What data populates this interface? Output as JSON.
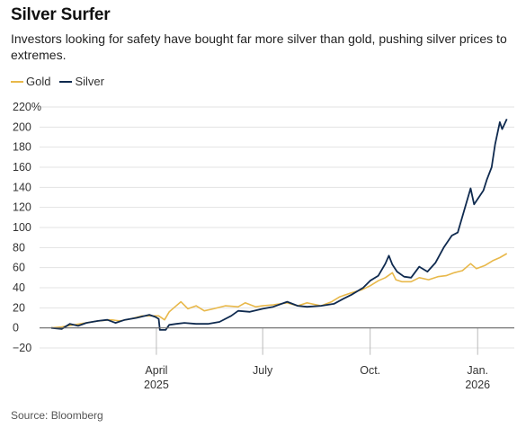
{
  "title": "Silver Surfer",
  "subtitle": "Investors looking for safety have bought far more silver than gold, pushing silver prices to extremes.",
  "source": "Source: Bloomberg",
  "colors": {
    "gold": "#e8b84a",
    "silver": "#0f2a4f",
    "grid": "#e3e3e3",
    "baseline": "#666666"
  },
  "chart_data": {
    "type": "line",
    "title": "Silver Surfer",
    "ylabel": "",
    "xlabel": "",
    "ylim": [
      -20,
      220
    ],
    "y_ticks": [
      -20,
      0,
      20,
      40,
      60,
      80,
      100,
      120,
      140,
      160,
      180,
      200,
      220
    ],
    "y_tick_labels": [
      "−20",
      "0",
      "20",
      "40",
      "60",
      "80",
      "100",
      "120",
      "140",
      "160",
      "180",
      "200",
      "220%"
    ],
    "x_ticks": [
      {
        "date": "2025-04-01",
        "label": "April",
        "sublabel": "2025"
      },
      {
        "date": "2025-07-01",
        "label": "July",
        "sublabel": ""
      },
      {
        "date": "2025-10-01",
        "label": "Oct.",
        "sublabel": ""
      },
      {
        "date": "2026-01-01",
        "label": "Jan.",
        "sublabel": "2026"
      }
    ],
    "xlim": [
      "2025-01-01",
      "2026-01-27"
    ],
    "grid": true,
    "legend": "top-left",
    "series": [
      {
        "name": "Gold",
        "color": "#e8b84a",
        "points": [
          [
            "2025-01-01",
            0
          ],
          [
            "2025-01-10",
            1
          ],
          [
            "2025-01-20",
            3
          ],
          [
            "2025-01-31",
            5
          ],
          [
            "2025-02-10",
            7
          ],
          [
            "2025-02-21",
            8
          ],
          [
            "2025-03-01",
            7
          ],
          [
            "2025-03-10",
            9
          ],
          [
            "2025-03-20",
            12
          ],
          [
            "2025-03-31",
            12
          ],
          [
            "2025-04-03",
            12
          ],
          [
            "2025-04-08",
            8
          ],
          [
            "2025-04-12",
            16
          ],
          [
            "2025-04-17",
            21
          ],
          [
            "2025-04-22",
            26
          ],
          [
            "2025-04-28",
            19
          ],
          [
            "2025-05-05",
            22
          ],
          [
            "2025-05-12",
            17
          ],
          [
            "2025-05-20",
            19
          ],
          [
            "2025-05-30",
            22
          ],
          [
            "2025-06-10",
            21
          ],
          [
            "2025-06-16",
            25
          ],
          [
            "2025-06-25",
            21
          ],
          [
            "2025-07-01",
            22
          ],
          [
            "2025-07-10",
            23
          ],
          [
            "2025-07-22",
            25
          ],
          [
            "2025-07-31",
            22
          ],
          [
            "2025-08-08",
            25
          ],
          [
            "2025-08-20",
            22
          ],
          [
            "2025-08-29",
            26
          ],
          [
            "2025-09-05",
            31
          ],
          [
            "2025-09-15",
            35
          ],
          [
            "2025-09-24",
            38
          ],
          [
            "2025-10-01",
            42
          ],
          [
            "2025-10-08",
            47
          ],
          [
            "2025-10-14",
            50
          ],
          [
            "2025-10-20",
            55
          ],
          [
            "2025-10-23",
            48
          ],
          [
            "2025-10-28",
            46
          ],
          [
            "2025-11-05",
            46
          ],
          [
            "2025-11-12",
            50
          ],
          [
            "2025-11-20",
            48
          ],
          [
            "2025-11-28",
            51
          ],
          [
            "2025-12-05",
            52
          ],
          [
            "2025-12-12",
            55
          ],
          [
            "2025-12-19",
            57
          ],
          [
            "2025-12-26",
            64
          ],
          [
            "2025-12-31",
            59
          ],
          [
            "2026-01-07",
            62
          ],
          [
            "2026-01-14",
            67
          ],
          [
            "2026-01-20",
            70
          ],
          [
            "2026-01-26",
            74
          ]
        ]
      },
      {
        "name": "Silver",
        "color": "#0f2a4f",
        "points": [
          [
            "2025-01-01",
            0
          ],
          [
            "2025-01-10",
            -1
          ],
          [
            "2025-01-17",
            4
          ],
          [
            "2025-01-24",
            2
          ],
          [
            "2025-01-31",
            5
          ],
          [
            "2025-02-10",
            7
          ],
          [
            "2025-02-18",
            8
          ],
          [
            "2025-02-25",
            5
          ],
          [
            "2025-03-05",
            8
          ],
          [
            "2025-03-15",
            10
          ],
          [
            "2025-03-26",
            13
          ],
          [
            "2025-03-31",
            11
          ],
          [
            "2025-04-03",
            9
          ],
          [
            "2025-04-04",
            -2
          ],
          [
            "2025-04-09",
            -2
          ],
          [
            "2025-04-12",
            3
          ],
          [
            "2025-04-18",
            4
          ],
          [
            "2025-04-25",
            5
          ],
          [
            "2025-05-05",
            4
          ],
          [
            "2025-05-15",
            4
          ],
          [
            "2025-05-25",
            6
          ],
          [
            "2025-06-04",
            12
          ],
          [
            "2025-06-10",
            17
          ],
          [
            "2025-06-20",
            16
          ],
          [
            "2025-07-01",
            19
          ],
          [
            "2025-07-10",
            21
          ],
          [
            "2025-07-22",
            26
          ],
          [
            "2025-07-31",
            22
          ],
          [
            "2025-08-08",
            21
          ],
          [
            "2025-08-20",
            22
          ],
          [
            "2025-08-31",
            24
          ],
          [
            "2025-09-08",
            29
          ],
          [
            "2025-09-15",
            33
          ],
          [
            "2025-09-25",
            40
          ],
          [
            "2025-10-01",
            47
          ],
          [
            "2025-10-08",
            52
          ],
          [
            "2025-10-14",
            64
          ],
          [
            "2025-10-17",
            72
          ],
          [
            "2025-10-20",
            63
          ],
          [
            "2025-10-24",
            56
          ],
          [
            "2025-10-30",
            51
          ],
          [
            "2025-11-05",
            50
          ],
          [
            "2025-11-12",
            61
          ],
          [
            "2025-11-19",
            56
          ],
          [
            "2025-11-26",
            65
          ],
          [
            "2025-12-03",
            80
          ],
          [
            "2025-12-10",
            92
          ],
          [
            "2025-12-15",
            95
          ],
          [
            "2025-12-19",
            111
          ],
          [
            "2025-12-26",
            139
          ],
          [
            "2025-12-29",
            123
          ],
          [
            "2026-01-02",
            130
          ],
          [
            "2026-01-06",
            137
          ],
          [
            "2026-01-09",
            148
          ],
          [
            "2026-01-13",
            160
          ],
          [
            "2026-01-16",
            183
          ],
          [
            "2026-01-20",
            205
          ],
          [
            "2026-01-22",
            198
          ],
          [
            "2026-01-26",
            208
          ]
        ]
      }
    ]
  }
}
